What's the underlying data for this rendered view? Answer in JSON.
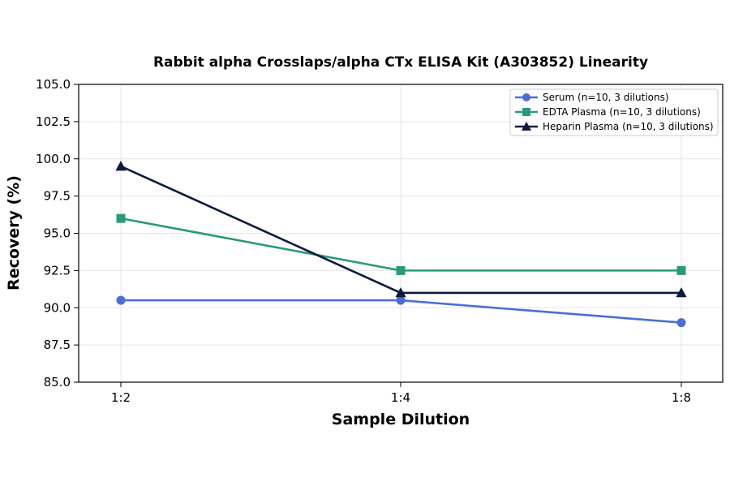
{
  "chart_data": {
    "type": "line",
    "title": "Rabbit alpha Crosslaps/alpha CTx ELISA Kit (A303852) Linearity",
    "xlabel": "Sample Dilution",
    "ylabel": "Recovery (%)",
    "categories": [
      "1:2",
      "1:4",
      "1:8"
    ],
    "ylim": [
      85.0,
      105.0
    ],
    "yticks": [
      "85.0",
      "87.5",
      "90.0",
      "92.5",
      "95.0",
      "97.5",
      "100.0",
      "102.5",
      "105.0"
    ],
    "grid": true,
    "legend_position": "top-right",
    "series": [
      {
        "name": "Serum (n=10, 3 dilutions)",
        "values": [
          90.5,
          90.5,
          89.0
        ],
        "color": "#4a6fd4",
        "marker": "circle"
      },
      {
        "name": "EDTA Plasma (n=10, 3 dilutions)",
        "values": [
          96.0,
          92.5,
          92.5
        ],
        "color": "#2a9a78",
        "marker": "square"
      },
      {
        "name": "Heparin Plasma (n=10, 3 dilutions)",
        "values": [
          99.5,
          91.0,
          91.0
        ],
        "color": "#0d1a40",
        "marker": "triangle"
      }
    ]
  }
}
